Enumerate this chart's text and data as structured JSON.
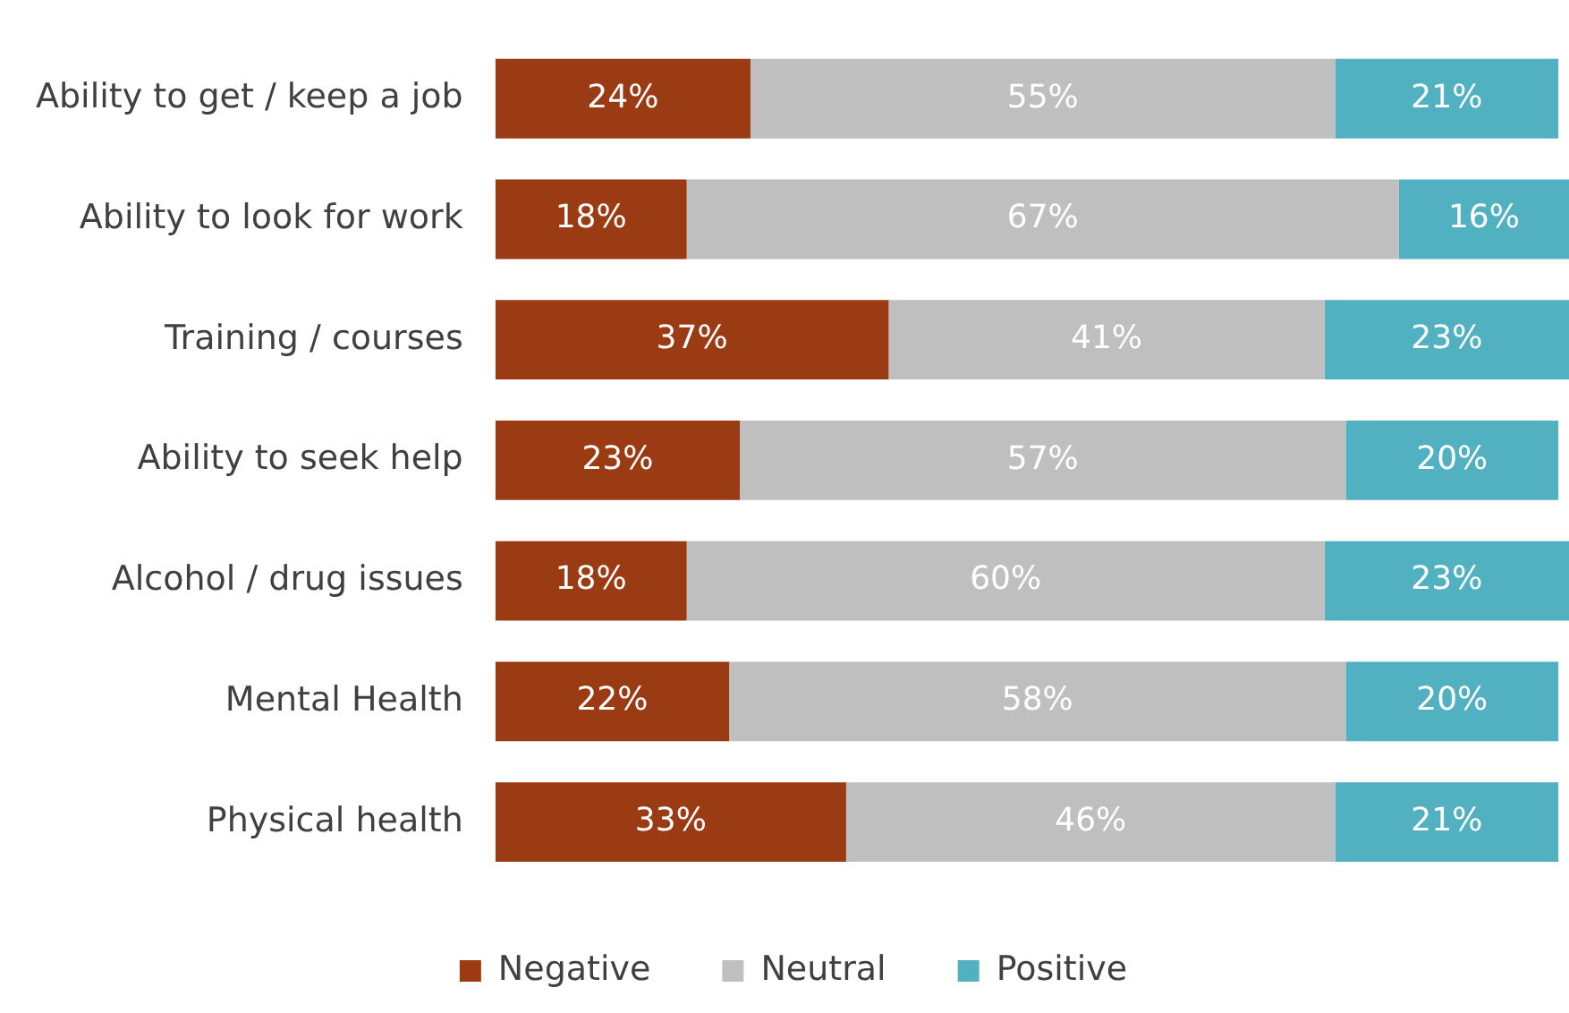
{
  "chart_data": {
    "type": "bar",
    "orientation": "horizontal",
    "stacked": true,
    "categories": [
      "Ability to get / keep a job",
      "Ability to look for work",
      "Training / courses",
      "Ability to seek help",
      "Alcohol / drug issues",
      "Mental Health",
      "Physical health"
    ],
    "series": [
      {
        "name": "Negative",
        "color": "#9a3b13",
        "values": [
          24,
          18,
          37,
          23,
          18,
          22,
          33
        ],
        "value_labels": [
          "24%",
          "18%",
          "37%",
          "23%",
          "18%",
          "22%",
          "33%"
        ]
      },
      {
        "name": "Neutral",
        "color": "#bfbfbf",
        "values": [
          55,
          67,
          41,
          57,
          60,
          58,
          46
        ],
        "value_labels": [
          "55%",
          "67%",
          "41%",
          "57%",
          "60%",
          "58%",
          "46%"
        ]
      },
      {
        "name": "Positive",
        "color": "#52b1c1",
        "values": [
          21,
          16,
          23,
          20,
          23,
          20,
          21
        ],
        "value_labels": [
          "21%",
          "16%",
          "23%",
          "20%",
          "23%",
          "20%",
          "21%"
        ]
      }
    ],
    "legend": "bottom"
  }
}
